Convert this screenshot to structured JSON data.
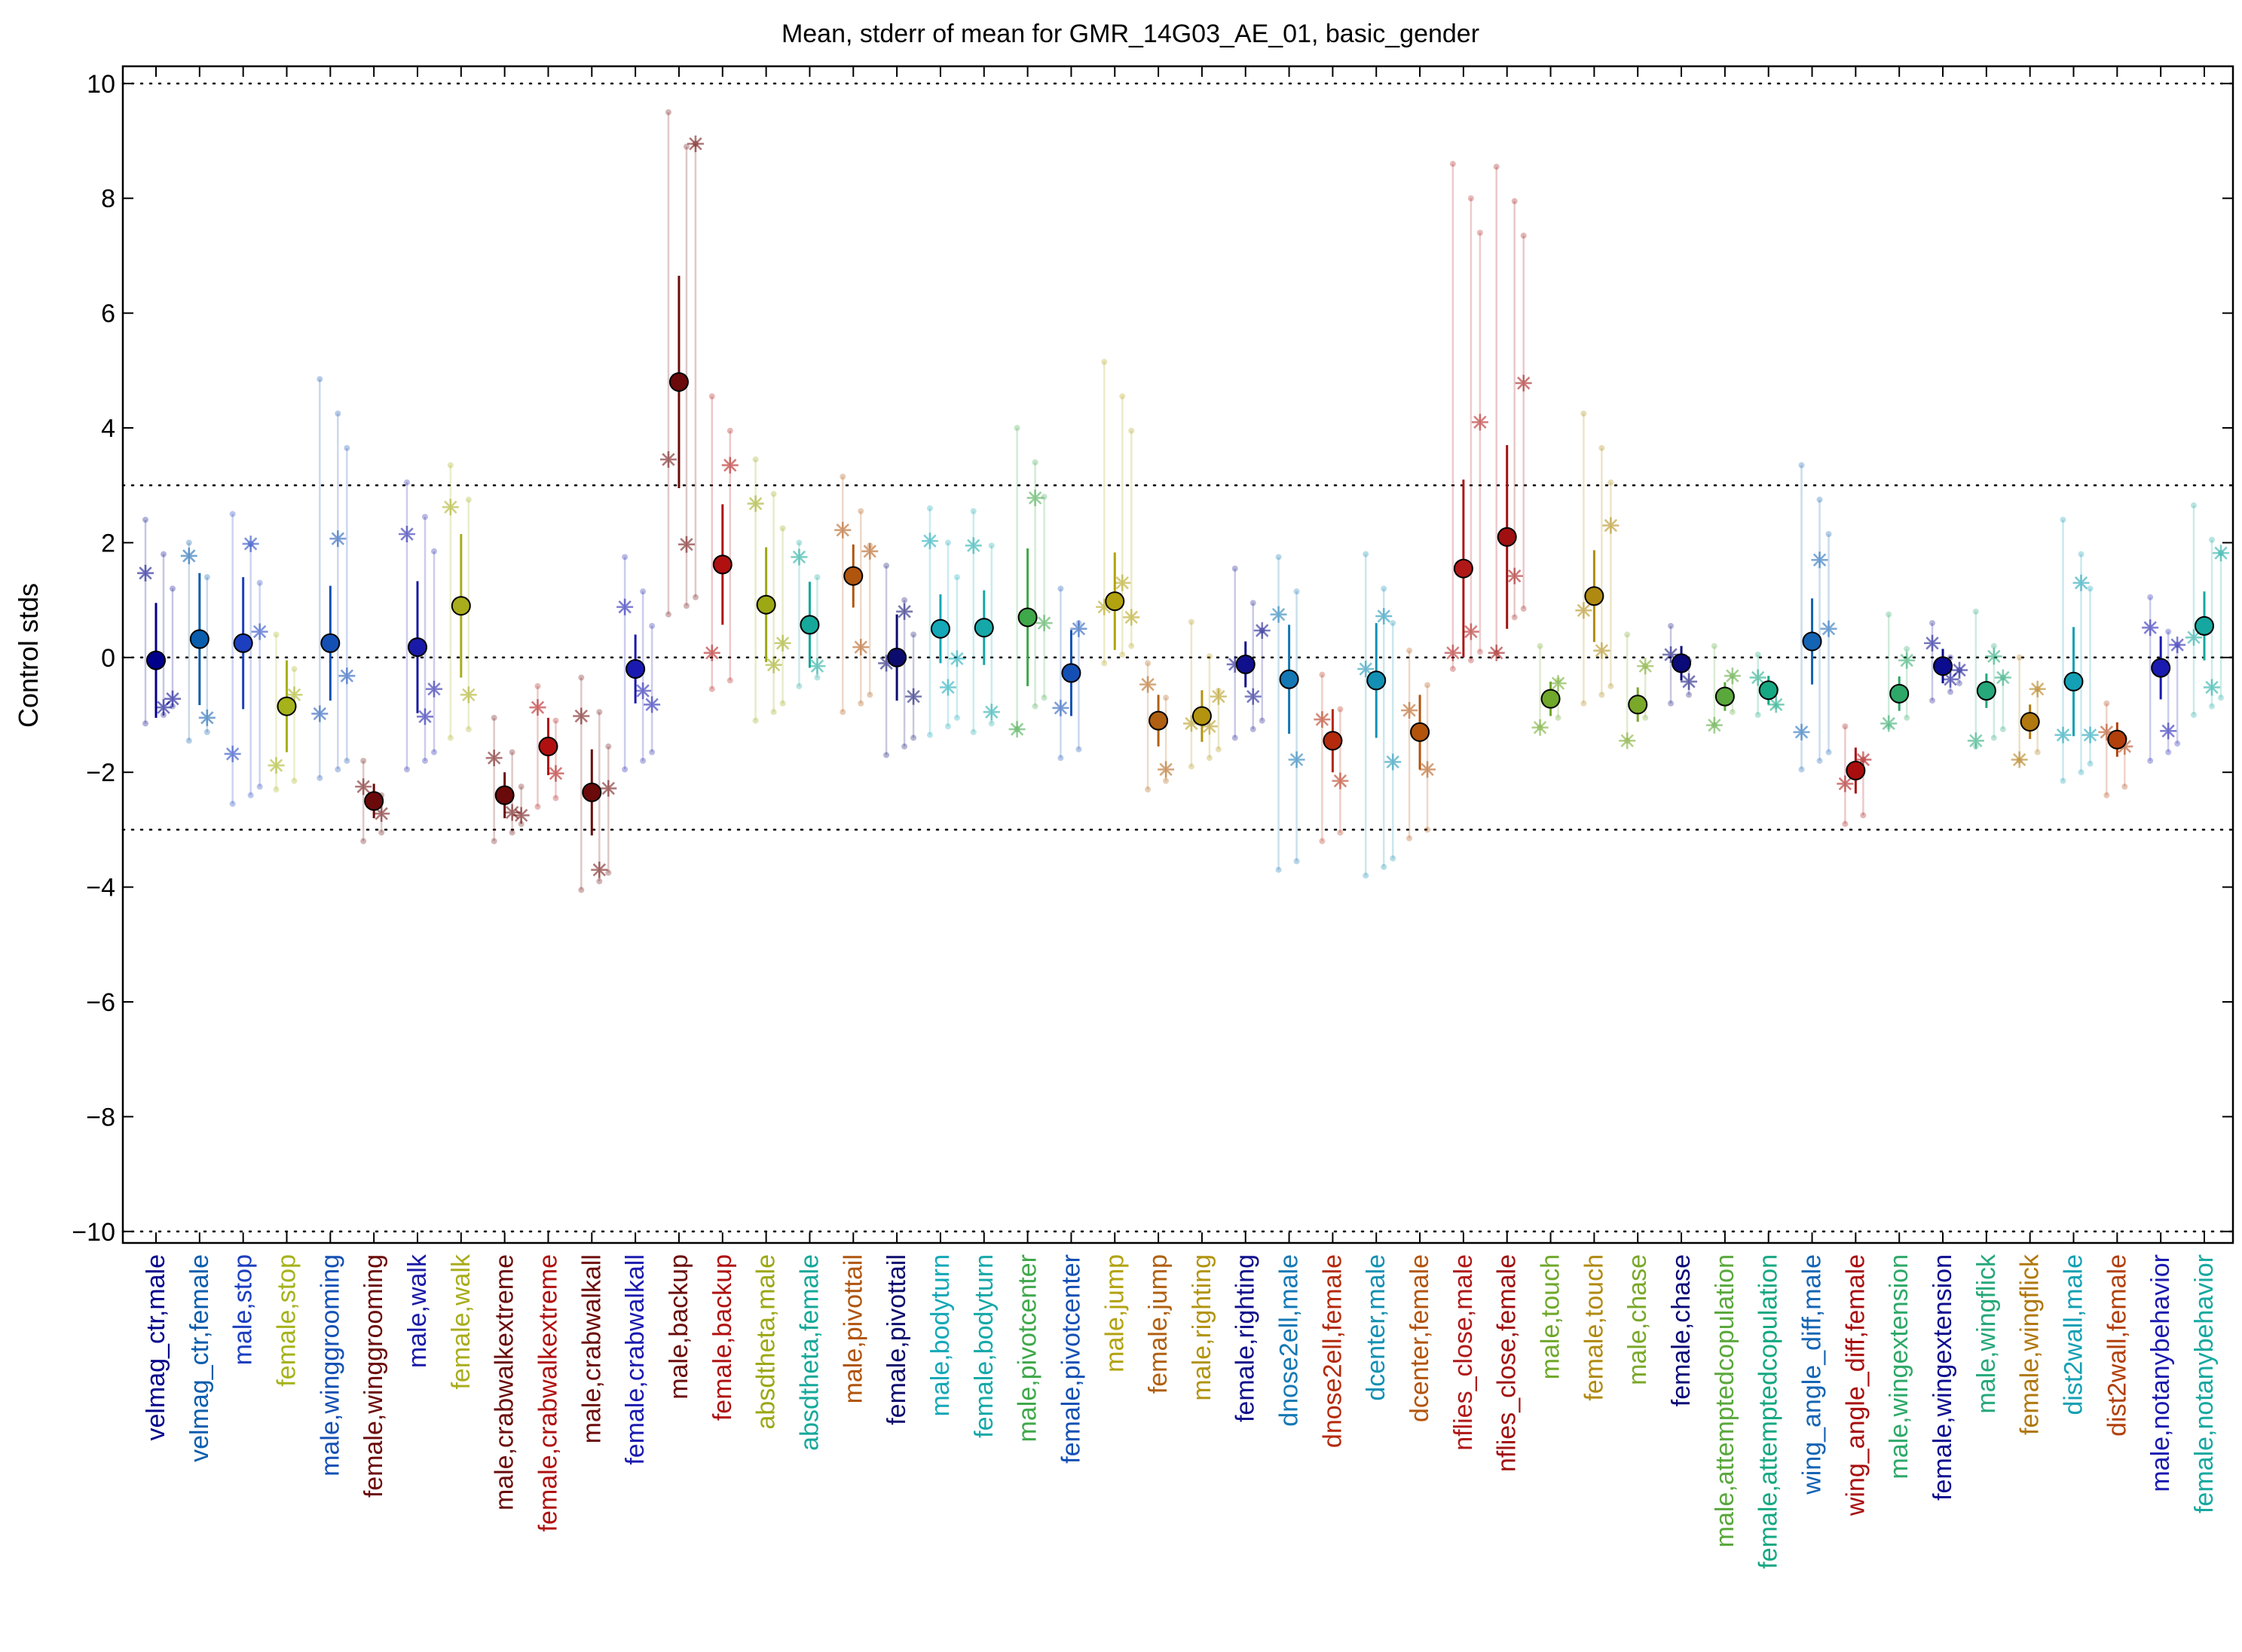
{
  "chart_data": {
    "type": "scatter",
    "title": "Mean, stderr of mean for GMR_14G03_AE_01, basic_gender",
    "xlabel": "",
    "ylabel": "Control stds",
    "ylim": [
      -10.2,
      10.3
    ],
    "yticks": [
      -10,
      -8,
      -6,
      -4,
      -2,
      0,
      2,
      4,
      6,
      8,
      10
    ],
    "ytick_labels": [
      "−10",
      "−8",
      "−6",
      "−4",
      "−2",
      "0",
      "2",
      "4",
      "6",
      "8",
      "10"
    ],
    "reference_lines": [
      10,
      3,
      0,
      -3,
      -10
    ],
    "grid": false,
    "legend": "none",
    "marker_color": "#000000",
    "points": [
      {
        "label": "velmag_ctr,male",
        "mean": -0.05,
        "sem": 1.0,
        "color": "#00008b",
        "stars": [
          1.47,
          -0.87,
          -0.72
        ],
        "lo": -1.15,
        "hi": 2.4
      },
      {
        "label": "velmag_ctr,female",
        "mean": 0.32,
        "sem": 1.15,
        "color": "#0a5dad",
        "stars": [
          1.77,
          -1.05
        ],
        "lo": -1.45,
        "hi": 2.0
      },
      {
        "label": "male,stop",
        "mean": 0.25,
        "sem": 1.15,
        "color": "#1c3fbf",
        "stars": [
          -1.68,
          1.98,
          0.45
        ],
        "lo": -2.55,
        "hi": 2.5
      },
      {
        "label": "female,stop",
        "mean": -0.85,
        "sem": 0.8,
        "color": "#a6b21a",
        "stars": [
          -1.88,
          -0.65
        ],
        "lo": -2.3,
        "hi": 0.4
      },
      {
        "label": "male,winggrooming",
        "mean": 0.25,
        "sem": 1.0,
        "color": "#1450b4",
        "stars": [
          -0.98,
          2.07,
          -0.32
        ],
        "lo": -2.1,
        "hi": 4.85
      },
      {
        "label": "female,winggrooming",
        "mean": -2.5,
        "sem": 0.3,
        "color": "#6b0a0a",
        "stars": [
          -2.25,
          -2.72
        ],
        "lo": -3.2,
        "hi": -1.8
      },
      {
        "label": "male,walk",
        "mean": 0.18,
        "sem": 1.15,
        "color": "#1a1aa8",
        "stars": [
          2.15,
          -1.03,
          -0.55
        ],
        "lo": -1.95,
        "hi": 3.05
      },
      {
        "label": "female,walk",
        "mean": 0.9,
        "sem": 1.25,
        "color": "#a9ad1c",
        "stars": [
          2.62,
          -0.65
        ],
        "lo": -1.4,
        "hi": 3.35
      },
      {
        "label": "male,crabwalkextreme",
        "mean": -2.4,
        "sem": 0.4,
        "color": "#6b0a0a",
        "stars": [
          -1.75,
          -2.7,
          -2.75
        ],
        "lo": -3.2,
        "hi": -1.05
      },
      {
        "label": "female,crabwalkextreme",
        "mean": -1.55,
        "sem": 0.5,
        "color": "#b01010",
        "stars": [
          -0.87,
          -2.02
        ],
        "lo": -2.6,
        "hi": -0.5
      },
      {
        "label": "male,crabwalkall",
        "mean": -2.35,
        "sem": 0.75,
        "color": "#6b0a0a",
        "stars": [
          -1.02,
          -3.7,
          -2.28
        ],
        "lo": -4.05,
        "hi": -0.35
      },
      {
        "label": "female,crabwalkall",
        "mean": -0.2,
        "sem": 0.6,
        "color": "#1a1ab0",
        "stars": [
          0.88,
          -0.58,
          -0.82
        ],
        "lo": -1.95,
        "hi": 1.75
      },
      {
        "label": "male,backup",
        "mean": 4.8,
        "sem": 1.85,
        "color": "#6b0a0a",
        "stars": [
          3.45,
          1.97,
          8.95
        ],
        "lo": 0.75,
        "hi": 9.5
      },
      {
        "label": "female,backup",
        "mean": 1.62,
        "sem": 1.05,
        "color": "#b01010",
        "stars": [
          0.08,
          3.35
        ],
        "lo": -0.55,
        "hi": 4.55
      },
      {
        "label": "absdtheta,male",
        "mean": 0.92,
        "sem": 1.0,
        "color": "#9ca814",
        "stars": [
          2.68,
          -0.13,
          0.25
        ],
        "lo": -1.1,
        "hi": 3.45
      },
      {
        "label": "absdtheta,female",
        "mean": 0.57,
        "sem": 0.75,
        "color": "#16a89a",
        "stars": [
          1.75,
          -0.15
        ],
        "lo": -0.5,
        "hi": 2.0
      },
      {
        "label": "male,pivottail",
        "mean": 1.42,
        "sem": 0.55,
        "color": "#b0550e",
        "stars": [
          2.22,
          0.18,
          1.85
        ],
        "lo": -0.95,
        "hi": 3.15
      },
      {
        "label": "female,pivottail",
        "mean": 0.0,
        "sem": 0.75,
        "color": "#0c0c6e",
        "stars": [
          -0.1,
          0.8,
          -0.68
        ],
        "lo": -1.7,
        "hi": 1.6
      },
      {
        "label": "male,bodyturn",
        "mean": 0.5,
        "sem": 0.6,
        "color": "#14a8b8",
        "stars": [
          2.03,
          -0.52,
          -0.02
        ],
        "lo": -1.35,
        "hi": 2.6
      },
      {
        "label": "female,bodyturn",
        "mean": 0.52,
        "sem": 0.65,
        "color": "#16a8a8",
        "stars": [
          1.95,
          -0.95
        ],
        "lo": -1.3,
        "hi": 2.55
      },
      {
        "label": "male,pivotcenter",
        "mean": 0.7,
        "sem": 1.2,
        "color": "#3fa84a",
        "stars": [
          -1.25,
          2.78,
          0.6
        ],
        "lo": -1.0,
        "hi": 4.0
      },
      {
        "label": "female,pivotcenter",
        "mean": -0.27,
        "sem": 0.75,
        "color": "#1450b4",
        "stars": [
          -0.88,
          0.5
        ],
        "lo": -1.75,
        "hi": 1.2
      },
      {
        "label": "male,jump",
        "mean": 0.98,
        "sem": 0.85,
        "color": "#b2a20f",
        "stars": [
          0.88,
          1.3,
          0.7
        ],
        "lo": -0.1,
        "hi": 5.15
      },
      {
        "label": "female,jump",
        "mean": -1.1,
        "sem": 0.45,
        "color": "#b06010",
        "stars": [
          -0.47,
          -1.95
        ],
        "lo": -2.3,
        "hi": -0.1
      },
      {
        "label": "male,righting",
        "mean": -1.02,
        "sem": 0.45,
        "color": "#b29410",
        "stars": [
          -1.15,
          -1.2,
          -0.68
        ],
        "lo": -1.9,
        "hi": 0.62
      },
      {
        "label": "female,righting",
        "mean": -0.12,
        "sem": 0.4,
        "color": "#10108c",
        "stars": [
          -0.12,
          -0.68,
          0.47
        ],
        "lo": -1.4,
        "hi": 1.55
      },
      {
        "label": "dnose2ell,male",
        "mean": -0.38,
        "sem": 0.95,
        "color": "#1478b4",
        "stars": [
          0.75,
          -1.78
        ],
        "lo": -3.7,
        "hi": 1.75
      },
      {
        "label": "dnose2ell,female",
        "mean": -1.45,
        "sem": 0.55,
        "color": "#b42a0c",
        "stars": [
          -1.08,
          -2.15
        ],
        "lo": -3.2,
        "hi": -0.3
      },
      {
        "label": "dcenter,male",
        "mean": -0.4,
        "sem": 1.0,
        "color": "#1490b4",
        "stars": [
          -0.2,
          0.72,
          -1.82
        ],
        "lo": -3.8,
        "hi": 1.8
      },
      {
        "label": "dcenter,female",
        "mean": -1.3,
        "sem": 0.65,
        "color": "#b2540c",
        "stars": [
          -0.92,
          -1.95
        ],
        "lo": -3.15,
        "hi": 0.12
      },
      {
        "label": "nflies_close,male",
        "mean": 1.55,
        "sem": 1.55,
        "color": "#b01818",
        "stars": [
          0.08,
          0.45,
          4.1
        ],
        "lo": -0.2,
        "hi": 8.6
      },
      {
        "label": "nflies_close,female",
        "mean": 2.1,
        "sem": 1.6,
        "color": "#a01010",
        "stars": [
          0.08,
          1.42,
          4.78
        ],
        "lo": 0.55,
        "hi": 8.55
      },
      {
        "label": "male,touch",
        "mean": -0.72,
        "sem": 0.3,
        "color": "#6fa82a",
        "stars": [
          -1.22,
          -0.45
        ],
        "lo": -1.2,
        "hi": 0.2
      },
      {
        "label": "female,touch",
        "mean": 1.07,
        "sem": 0.8,
        "color": "#b08a10",
        "stars": [
          0.82,
          0.12,
          2.3
        ],
        "lo": -0.8,
        "hi": 4.25
      },
      {
        "label": "male,chase",
        "mean": -0.82,
        "sem": 0.3,
        "color": "#7aa82a",
        "stars": [
          -1.45,
          -0.15
        ],
        "lo": -1.2,
        "hi": 0.4
      },
      {
        "label": "female,chase",
        "mean": -0.1,
        "sem": 0.3,
        "color": "#0a0a78",
        "stars": [
          0.05,
          -0.42
        ],
        "lo": -0.8,
        "hi": 0.55
      },
      {
        "label": "male,attemptedcopulation",
        "mean": -0.68,
        "sem": 0.25,
        "color": "#5aa83c",
        "stars": [
          -1.18,
          -0.32
        ],
        "lo": -1.1,
        "hi": 0.2
      },
      {
        "label": "female,attemptedcopulation",
        "mean": -0.57,
        "sem": 0.25,
        "color": "#16a882",
        "stars": [
          -0.35,
          -0.82
        ],
        "lo": -1.0,
        "hi": 0.05
      },
      {
        "label": "wing_angle_diff,male",
        "mean": 0.28,
        "sem": 0.75,
        "color": "#1464b4",
        "stars": [
          -1.3,
          1.7,
          0.5
        ],
        "lo": -1.95,
        "hi": 3.35
      },
      {
        "label": "wing_angle_diff,female",
        "mean": -1.97,
        "sem": 0.4,
        "color": "#a80e0e",
        "stars": [
          -2.2,
          -1.78
        ],
        "lo": -2.9,
        "hi": -1.2
      },
      {
        "label": "male,wingextension",
        "mean": -0.63,
        "sem": 0.3,
        "color": "#2ea868",
        "stars": [
          -1.15,
          -0.05
        ],
        "lo": -1.2,
        "hi": 0.75
      },
      {
        "label": "female,wingextension",
        "mean": -0.15,
        "sem": 0.3,
        "color": "#0c0c90",
        "stars": [
          0.25,
          -0.38,
          -0.22
        ],
        "lo": -0.75,
        "hi": 0.6
      },
      {
        "label": "male,wingflick",
        "mean": -0.58,
        "sem": 0.3,
        "color": "#26a87a",
        "stars": [
          -1.45,
          0.02,
          -0.35
        ],
        "lo": -1.55,
        "hi": 0.8
      },
      {
        "label": "female,wingflick",
        "mean": -1.12,
        "sem": 0.3,
        "color": "#b0780e",
        "stars": [
          -1.78,
          -0.55
        ],
        "lo": -1.8,
        "hi": 0.0
      },
      {
        "label": "dist2wall,male",
        "mean": -0.42,
        "sem": 0.95,
        "color": "#14a0b4",
        "stars": [
          -1.35,
          1.3,
          -1.35
        ],
        "lo": -2.15,
        "hi": 2.4
      },
      {
        "label": "dist2wall,female",
        "mean": -1.43,
        "sem": 0.3,
        "color": "#b2400c",
        "stars": [
          -1.3,
          -1.55
        ],
        "lo": -2.4,
        "hi": -0.8
      },
      {
        "label": "male,notanybehavior",
        "mean": -0.18,
        "sem": 0.55,
        "color": "#1a1ab0",
        "stars": [
          0.52,
          -1.28,
          0.22
        ],
        "lo": -1.8,
        "hi": 1.05
      },
      {
        "label": "female,notanybehavior",
        "mean": 0.55,
        "sem": 0.6,
        "color": "#16a8a0",
        "stars": [
          0.35,
          -0.52,
          1.82
        ],
        "lo": -1.0,
        "hi": 2.65
      }
    ]
  }
}
